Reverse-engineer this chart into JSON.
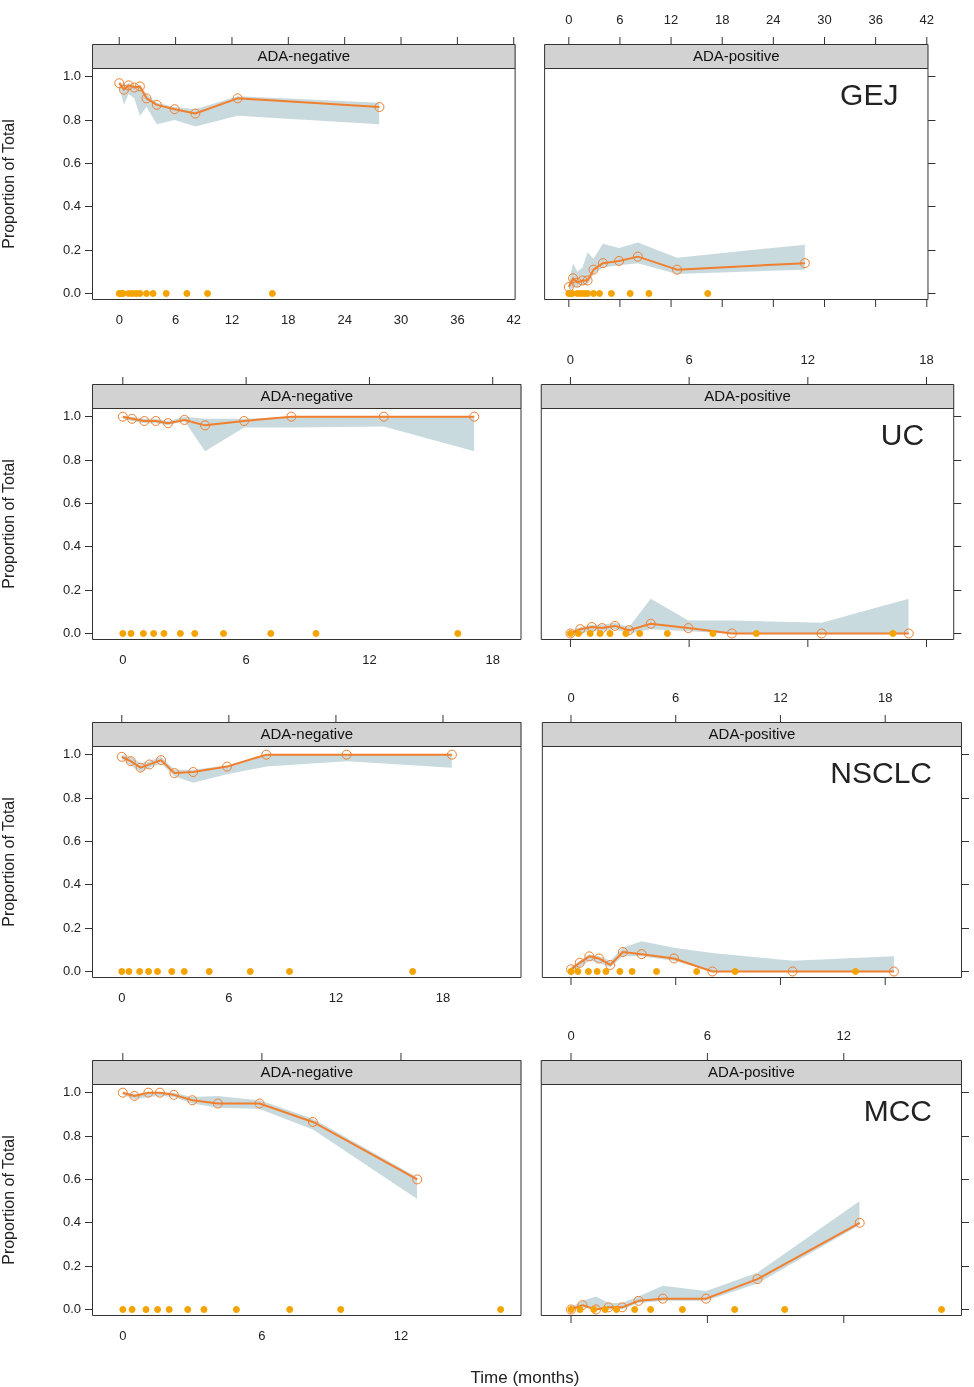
{
  "chart_data": [
    {
      "type": "line",
      "title": "ADA-negative",
      "ylabel": "Proportion of Total",
      "xlim": [
        -2.9,
        42.2
      ],
      "xticks": [
        0,
        6,
        12,
        18,
        24,
        30,
        36,
        42
      ],
      "ylim": [
        -0.03,
        1.04
      ],
      "yticks": [
        {
          "value": 0,
          "label": "0.0"
        },
        {
          "value": 0.2,
          "label": "0.2"
        },
        {
          "value": 0.4,
          "label": "0.4"
        },
        {
          "value": 0.6,
          "label": "0.6"
        },
        {
          "value": 0.8,
          "label": "0.8"
        },
        {
          "value": 1,
          "label": "1.0"
        }
      ],
      "marker": "circle",
      "series": [
        {
          "type": "line",
          "color": "#f07f2e",
          "x": [
            0,
            0.5,
            1.0,
            1.6,
            2.2,
            2.9,
            4.0,
            5.9,
            8.1,
            12.6,
            27.7
          ],
          "values": [
            0.97,
            0.94,
            0.96,
            0.95,
            0.955,
            0.9,
            0.87,
            0.85,
            0.83,
            0.9,
            0.86
          ],
          "lower": [
            0.95,
            0.87,
            0.92,
            0.9,
            0.82,
            0.86,
            0.78,
            0.8,
            0.77,
            0.82,
            0.78
          ],
          "upper": [
            0.98,
            0.96,
            0.97,
            0.96,
            0.96,
            0.92,
            0.88,
            0.86,
            0.85,
            0.91,
            0.88
          ]
        },
        {
          "type": "scatter",
          "color": "#f5a300",
          "x": [
            0,
            0.2,
            0.4,
            1.0,
            1.4,
            1.8,
            2.2,
            2.9,
            3.6,
            5.0,
            7.2,
            9.4,
            16.3
          ],
          "values": [
            0,
            0,
            0,
            0,
            0,
            0,
            0,
            0,
            0,
            0,
            0,
            0,
            0
          ]
        }
      ]
    },
    {
      "type": "line",
      "title": "ADA-positive",
      "annotations": [
        "GEJ"
      ],
      "tick_labels": "x",
      "xlim": [
        -2.9,
        42.2
      ],
      "xticks": [
        0,
        6,
        12,
        18,
        24,
        30,
        36,
        42
      ],
      "ylim": [
        -0.03,
        1.04
      ],
      "yticks": [
        0,
        0.2,
        0.4,
        0.6,
        0.8,
        1
      ],
      "marker": "circle",
      "series": [
        {
          "type": "line",
          "color": "#f07f2e",
          "x": [
            0,
            0.5,
            1.0,
            1.6,
            2.2,
            2.9,
            4.0,
            5.9,
            8.1,
            12.7,
            27.7
          ],
          "values": [
            0.03,
            0.07,
            0.05,
            0.06,
            0.06,
            0.11,
            0.14,
            0.15,
            0.17,
            0.11,
            0.14
          ],
          "lower": [
            0.0,
            0.03,
            0.03,
            0.04,
            0.04,
            0.09,
            0.12,
            0.13,
            0.14,
            0.09,
            0.11
          ],
          "upper": [
            0.05,
            0.14,
            0.1,
            0.12,
            0.19,
            0.16,
            0.23,
            0.21,
            0.235,
            0.165,
            0.225
          ]
        },
        {
          "type": "scatter",
          "color": "#f5a300",
          "x": [
            0,
            0.2,
            0.4,
            1.0,
            1.4,
            1.8,
            2.2,
            2.9,
            3.6,
            5.0,
            7.2,
            9.4,
            16.3
          ],
          "values": [
            0,
            0,
            0,
            0,
            0,
            0,
            0,
            0,
            0,
            0,
            0,
            0,
            0
          ]
        }
      ]
    },
    {
      "type": "line",
      "title": "ADA-negative",
      "ylabel": "Proportion of Total",
      "xlim": [
        -1.5,
        19.4
      ],
      "xticks": [
        0,
        6,
        12,
        18
      ],
      "ylim": [
        -0.03,
        1.04
      ],
      "yticks": [
        {
          "value": 0,
          "label": "0.0"
        },
        {
          "value": 0.2,
          "label": "0.2"
        },
        {
          "value": 0.4,
          "label": "0.4"
        },
        {
          "value": 0.6,
          "label": "0.6"
        },
        {
          "value": 0.8,
          "label": "0.8"
        },
        {
          "value": 1,
          "label": "1.0"
        }
      ],
      "marker": "circle",
      "series": [
        {
          "type": "line",
          "color": "#f07f2e",
          "x": [
            0,
            0.45,
            1.05,
            1.6,
            2.2,
            3.0,
            4.0,
            5.9,
            8.2,
            12.7,
            17.1
          ],
          "values": [
            1.0,
            0.99,
            0.98,
            0.98,
            0.97,
            0.985,
            0.96,
            0.98,
            1.0,
            1.0,
            1.0
          ],
          "lower": [
            0.99,
            0.98,
            0.97,
            0.97,
            0.96,
            0.98,
            0.84,
            0.95,
            0.95,
            0.955,
            0.84
          ],
          "upper": [
            1.0,
            1.0,
            0.99,
            0.99,
            0.98,
            1.0,
            0.99,
            0.99,
            1.0,
            1.0,
            1.0
          ]
        },
        {
          "type": "scatter",
          "color": "#f5a300",
          "x": [
            0,
            0.4,
            1.0,
            1.5,
            2.0,
            2.8,
            3.5,
            4.9,
            7.2,
            9.4,
            16.3
          ],
          "values": [
            0,
            0,
            0,
            0,
            0,
            0,
            0,
            0,
            0,
            0,
            0
          ]
        }
      ]
    },
    {
      "type": "line",
      "title": "ADA-positive",
      "annotations": [
        "UC"
      ],
      "tick_labels": "x",
      "xlim": [
        -1.5,
        19.4
      ],
      "xticks": [
        0,
        6,
        12,
        18
      ],
      "ylim": [
        -0.03,
        1.04
      ],
      "yticks": [
        0,
        0.2,
        0.4,
        0.6,
        0.8,
        1
      ],
      "marker": "circle",
      "series": [
        {
          "type": "line",
          "color": "#f07f2e",
          "x": [
            0,
            0.5,
            1.08,
            1.6,
            2.25,
            2.96,
            4.06,
            5.96,
            8.16,
            12.7,
            17.1
          ],
          "values": [
            0.0,
            0.02,
            0.03,
            0.025,
            0.035,
            0.015,
            0.045,
            0.025,
            0.0,
            0.0,
            0.0
          ],
          "lower": [
            0,
            0,
            0.01,
            0.01,
            0.02,
            0.0,
            0.02,
            0.01,
            0,
            0,
            0
          ],
          "upper": [
            0.01,
            0.03,
            0.04,
            0.04,
            0.05,
            0.03,
            0.16,
            0.06,
            0.06,
            0.05,
            0.16
          ]
        },
        {
          "type": "scatter",
          "color": "#f5a300",
          "x": [
            0,
            0.4,
            1.0,
            1.5,
            2.0,
            2.8,
            3.5,
            4.9,
            7.2,
            9.4,
            16.3
          ],
          "values": [
            0,
            0,
            0,
            0,
            0,
            0,
            0,
            0,
            0,
            0,
            0
          ]
        }
      ]
    },
    {
      "type": "line",
      "title": "ADA-negative",
      "ylabel": "Proportion of Total",
      "xlim": [
        -1.67,
        22.4
      ],
      "xticks": [
        0,
        6,
        12,
        18
      ],
      "ylim": [
        -0.03,
        1.04
      ],
      "yticks": [
        {
          "value": 0,
          "label": "0.0"
        },
        {
          "value": 0.2,
          "label": "0.2"
        },
        {
          "value": 0.4,
          "label": "0.4"
        },
        {
          "value": 0.6,
          "label": "0.6"
        },
        {
          "value": 0.8,
          "label": "0.8"
        },
        {
          "value": 1,
          "label": "1.0"
        }
      ],
      "marker": "circle",
      "series": [
        {
          "type": "line",
          "color": "#f07f2e",
          "x": [
            0,
            0.5,
            1.05,
            1.55,
            2.2,
            2.95,
            4.0,
            5.9,
            8.1,
            12.6,
            18.5
          ],
          "values": [
            0.99,
            0.97,
            0.94,
            0.955,
            0.975,
            0.915,
            0.92,
            0.945,
            1.0,
            1.0,
            1.0
          ],
          "lower": [
            0.98,
            0.95,
            0.92,
            0.94,
            0.96,
            0.9,
            0.87,
            0.91,
            0.945,
            0.97,
            0.94
          ],
          "upper": [
            1.0,
            0.99,
            0.96,
            0.97,
            0.99,
            0.93,
            0.93,
            0.95,
            1.0,
            1.0,
            1.0
          ]
        },
        {
          "type": "scatter",
          "color": "#f5a300",
          "x": [
            0,
            0.4,
            1.0,
            1.5,
            2.0,
            2.8,
            3.5,
            4.9,
            7.2,
            9.4,
            16.3
          ],
          "values": [
            0,
            0,
            0,
            0,
            0,
            0,
            0,
            0,
            0,
            0,
            0
          ]
        }
      ]
    },
    {
      "type": "line",
      "title": "ADA-positive",
      "annotations": [
        "NSCLC"
      ],
      "tick_labels": "x",
      "xlim": [
        -1.67,
        22.4
      ],
      "xticks": [
        0,
        6,
        12,
        18
      ],
      "ylim": [
        -0.03,
        1.04
      ],
      "yticks": [
        0,
        0.2,
        0.4,
        0.6,
        0.8,
        1
      ],
      "marker": "circle",
      "series": [
        {
          "type": "line",
          "color": "#f07f2e",
          "x": [
            0,
            0.5,
            1.05,
            1.6,
            2.25,
            2.97,
            4.05,
            5.9,
            8.1,
            12.7,
            18.5
          ],
          "values": [
            0.01,
            0.04,
            0.07,
            0.06,
            0.03,
            0.09,
            0.08,
            0.06,
            0.0,
            0.0,
            0.0
          ],
          "lower": [
            0,
            0.02,
            0.05,
            0.04,
            0.02,
            0.07,
            0.07,
            0.05,
            0,
            0,
            0
          ],
          "upper": [
            0.02,
            0.05,
            0.08,
            0.07,
            0.05,
            0.11,
            0.14,
            0.11,
            0.085,
            0.05,
            0.07
          ]
        },
        {
          "type": "scatter",
          "color": "#f5a300",
          "x": [
            0,
            0.4,
            1.0,
            1.5,
            2.0,
            2.8,
            3.5,
            4.9,
            7.2,
            9.4,
            16.3
          ],
          "values": [
            0,
            0,
            0,
            0,
            0,
            0,
            0,
            0,
            0,
            0,
            0
          ]
        }
      ]
    },
    {
      "type": "line",
      "title": "ADA-negative",
      "ylabel": "Proportion of Total",
      "xlabel": "Time (months)",
      "xlim": [
        -1.33,
        17.2
      ],
      "xticks": [
        0,
        6,
        12
      ],
      "ylim": [
        -0.03,
        1.04
      ],
      "yticks": [
        {
          "value": 0,
          "label": "0.0"
        },
        {
          "value": 0.2,
          "label": "0.2"
        },
        {
          "value": 0.4,
          "label": "0.4"
        },
        {
          "value": 0.6,
          "label": "0.6"
        },
        {
          "value": 0.8,
          "label": "0.8"
        },
        {
          "value": 1,
          "label": "1.0"
        }
      ],
      "marker": "circle",
      "series": [
        {
          "type": "line",
          "color": "#f07f2e",
          "x": [
            0,
            0.5,
            1.1,
            1.6,
            2.2,
            3.0,
            4.1,
            5.9,
            8.2,
            12.7
          ],
          "values": [
            1.0,
            0.985,
            1.0,
            1.0,
            0.99,
            0.965,
            0.95,
            0.95,
            0.865,
            0.6
          ],
          "lower": [
            0.99,
            0.97,
            0.98,
            0.985,
            0.98,
            0.95,
            0.93,
            0.925,
            0.83,
            0.51
          ],
          "upper": [
            1.0,
            0.995,
            1.0,
            1.0,
            1.0,
            0.98,
            0.985,
            0.965,
            0.88,
            0.61
          ]
        },
        {
          "type": "scatter",
          "color": "#f5a300",
          "x": [
            0,
            0.4,
            1.0,
            1.5,
            2.0,
            2.8,
            3.5,
            4.9,
            7.2,
            9.4,
            16.3
          ],
          "values": [
            0,
            0,
            0,
            0,
            0,
            0,
            0,
            0,
            0,
            0,
            0
          ]
        }
      ]
    },
    {
      "type": "line",
      "title": "ADA-positive",
      "annotations": [
        "MCC"
      ],
      "tick_labels": "x",
      "xlim": [
        -1.33,
        17.2
      ],
      "xticks": [
        0,
        6,
        12
      ],
      "ylim": [
        -0.03,
        1.04
      ],
      "yticks": [
        0,
        0.2,
        0.4,
        0.6,
        0.8,
        1
      ],
      "marker": "circle",
      "series": [
        {
          "type": "line",
          "color": "#f07f2e",
          "x": [
            0,
            0.5,
            1.1,
            1.65,
            2.25,
            2.97,
            4.04,
            5.94,
            8.2,
            12.7
          ],
          "values": [
            0.0,
            0.02,
            0.0,
            0.01,
            0.01,
            0.04,
            0.05,
            0.05,
            0.14,
            0.4
          ],
          "lower": [
            0,
            0.01,
            0,
            0,
            0,
            0.03,
            0.04,
            0.04,
            0.12,
            0.39
          ],
          "upper": [
            0.01,
            0.04,
            0.06,
            0.03,
            0.03,
            0.06,
            0.11,
            0.085,
            0.17,
            0.5
          ]
        },
        {
          "type": "scatter",
          "color": "#f5a300",
          "x": [
            0,
            0.4,
            1.0,
            1.5,
            2.0,
            2.8,
            3.5,
            4.9,
            7.2,
            9.4,
            16.3
          ],
          "values": [
            0,
            0,
            0,
            0,
            0,
            0,
            0,
            0,
            0,
            0,
            0
          ]
        }
      ]
    }
  ]
}
